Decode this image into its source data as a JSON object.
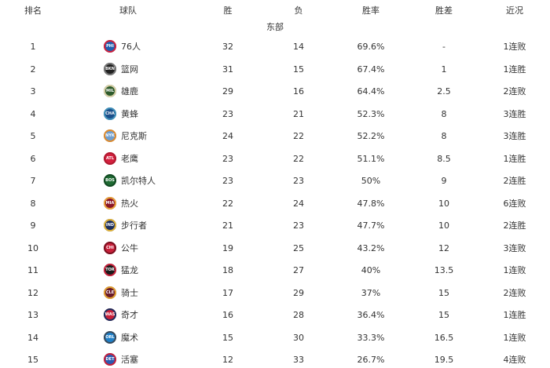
{
  "headers": {
    "rank": "排名",
    "team": "球队",
    "wins": "胜",
    "losses": "负",
    "pct": "胜率",
    "gb": "胜差",
    "streak": "近况"
  },
  "conference": "东部",
  "rows": [
    {
      "rank": "1",
      "abbr": "PHI",
      "team": "76人",
      "wins": "32",
      "losses": "14",
      "pct": "69.6%",
      "gb": "-",
      "streak": "1连败",
      "color": "#1d5fb0",
      "ring": "#d0213a"
    },
    {
      "rank": "2",
      "abbr": "BKN",
      "team": "篮网",
      "wins": "31",
      "losses": "15",
      "pct": "67.4%",
      "gb": "1",
      "streak": "1连胜",
      "color": "#222222",
      "ring": "#777777"
    },
    {
      "rank": "3",
      "abbr": "MIL",
      "team": "雄鹿",
      "wins": "29",
      "losses": "16",
      "pct": "64.4%",
      "gb": "2.5",
      "streak": "2连败",
      "color": "#2d5a2a",
      "ring": "#d8cfa8"
    },
    {
      "rank": "4",
      "abbr": "CHA",
      "team": "黄蜂",
      "wins": "23",
      "losses": "21",
      "pct": "52.3%",
      "gb": "8",
      "streak": "3连胜",
      "color": "#1b4f8a",
      "ring": "#3f8fb8"
    },
    {
      "rank": "5",
      "abbr": "NYK",
      "team": "尼克斯",
      "wins": "24",
      "losses": "22",
      "pct": "52.2%",
      "gb": "8",
      "streak": "3连胜",
      "color": "#6f9fd0",
      "ring": "#e08a2a"
    },
    {
      "rank": "6",
      "abbr": "ATL",
      "team": "老鹰",
      "wins": "23",
      "losses": "22",
      "pct": "51.1%",
      "gb": "8.5",
      "streak": "1连胜",
      "color": "#d4213f",
      "ring": "#b01a30"
    },
    {
      "rank": "7",
      "abbr": "BOS",
      "team": "凯尔特人",
      "wins": "23",
      "losses": "23",
      "pct": "50%",
      "gb": "9",
      "streak": "2连胜",
      "color": "#1f6b33",
      "ring": "#124a22"
    },
    {
      "rank": "8",
      "abbr": "MIA",
      "team": "热火",
      "wins": "22",
      "losses": "24",
      "pct": "47.8%",
      "gb": "10",
      "streak": "6连败",
      "color": "#8a1528",
      "ring": "#e8a23a"
    },
    {
      "rank": "9",
      "abbr": "IND",
      "team": "步行者",
      "wins": "21",
      "losses": "23",
      "pct": "47.7%",
      "gb": "10",
      "streak": "2连胜",
      "color": "#1d2f5e",
      "ring": "#e0b23a"
    },
    {
      "rank": "10",
      "abbr": "CHI",
      "team": "公牛",
      "wins": "19",
      "losses": "25",
      "pct": "43.2%",
      "gb": "12",
      "streak": "3连败",
      "color": "#c8203a",
      "ring": "#7a1020"
    },
    {
      "rank": "11",
      "abbr": "TOR",
      "team": "猛龙",
      "wins": "18",
      "losses": "27",
      "pct": "40%",
      "gb": "13.5",
      "streak": "1连败",
      "color": "#1a1a1a",
      "ring": "#c8203a"
    },
    {
      "rank": "12",
      "abbr": "CLE",
      "team": "骑士",
      "wins": "17",
      "losses": "29",
      "pct": "37%",
      "gb": "15",
      "streak": "2连败",
      "color": "#6a1a2a",
      "ring": "#e0a030"
    },
    {
      "rank": "13",
      "abbr": "WAS",
      "team": "奇才",
      "wins": "16",
      "losses": "28",
      "pct": "36.4%",
      "gb": "15",
      "streak": "1连胜",
      "color": "#c8203a",
      "ring": "#1d2f5e"
    },
    {
      "rank": "14",
      "abbr": "ORL",
      "team": "魔术",
      "wins": "15",
      "losses": "30",
      "pct": "33.3%",
      "gb": "16.5",
      "streak": "1连败",
      "color": "#1f7fc8",
      "ring": "#3a4a5a"
    },
    {
      "rank": "15",
      "abbr": "DET",
      "team": "活塞",
      "wins": "12",
      "losses": "33",
      "pct": "26.7%",
      "gb": "19.5",
      "streak": "4连败",
      "color": "#2a5ab0",
      "ring": "#c8203a"
    }
  ]
}
